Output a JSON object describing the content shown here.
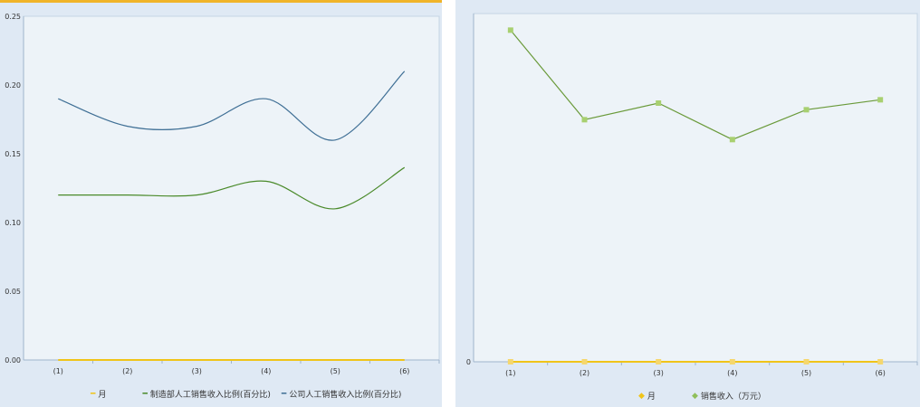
{
  "chart_data": [
    {
      "type": "line",
      "smooth": true,
      "categories": [
        "(1)",
        "(2)",
        "(3)",
        "(4)",
        "(5)",
        "(6)"
      ],
      "ylim": [
        0,
        0.25
      ],
      "yticks": [
        "0.00",
        "0.05",
        "0.10",
        "0.15",
        "0.20",
        "0.25"
      ],
      "series": [
        {
          "name": "月",
          "values": [
            0,
            0,
            0,
            0,
            0,
            0
          ],
          "color": "#f0c419"
        },
        {
          "name": "制造部人工销售收入比例(百分比)",
          "values": [
            0.12,
            0.12,
            0.12,
            0.13,
            0.11,
            0.14
          ],
          "color": "#4a8a2a"
        },
        {
          "name": "公司人工销售收入比例(百分比)",
          "values": [
            0.19,
            0.17,
            0.17,
            0.19,
            0.16,
            0.21
          ],
          "color": "#3f6f95"
        }
      ],
      "legend": "bottom"
    },
    {
      "type": "line",
      "smooth": false,
      "markers": true,
      "categories": [
        "(1)",
        "(2)",
        "(3)",
        "(4)",
        "(5)",
        "(6)"
      ],
      "ylim": [
        0,
        105
      ],
      "yticks": [
        "0"
      ],
      "series": [
        {
          "name": "月",
          "values": [
            0,
            0,
            0,
            0,
            0,
            0
          ],
          "color": "#f0c419"
        },
        {
          "name": "销售收入（万元）",
          "values": [
            100,
            73,
            78,
            67,
            76,
            79
          ],
          "color": "#6a9a3a"
        }
      ],
      "legend": "bottom"
    }
  ]
}
